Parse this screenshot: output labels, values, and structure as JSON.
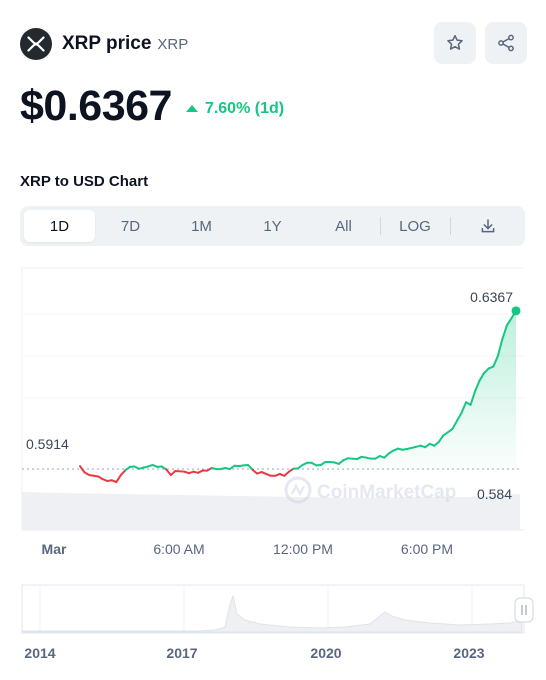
{
  "coin": {
    "name": "XRP price",
    "symbol": "XRP",
    "price": "$0.6367",
    "change": "7.60% (1d)",
    "change_color": "#16c784",
    "logo_icon": "xrp-logo-icon"
  },
  "actions": {
    "watchlist_icon": "star-icon",
    "share_icon": "share-icon"
  },
  "chart_section": {
    "title": "XRP to USD Chart",
    "ranges": [
      "1D",
      "7D",
      "1M",
      "1Y",
      "All"
    ],
    "active_range": "1D",
    "scale_label": "LOG",
    "download_icon": "download-icon"
  },
  "chart_data": {
    "type": "line",
    "x_tick_labels": [
      "Mar",
      "6:00 AM",
      "12:00 PM",
      "6:00 PM"
    ],
    "y_labels": {
      "current": "0.6367",
      "open": "0.5914",
      "low": "0.584"
    },
    "reference_value": 0.5914,
    "ylim": [
      0.575,
      0.645
    ],
    "colors": {
      "up": "#16c784",
      "down": "#ea3943",
      "reference": "#a6b0c3"
    },
    "x": [
      0,
      0.25,
      0.5,
      0.75,
      1,
      1.25,
      1.5,
      1.75,
      2,
      2.25,
      2.5,
      2.75,
      3,
      3.25,
      3.5,
      3.75,
      4,
      4.25,
      4.5,
      4.75,
      5,
      5.25,
      5.5,
      5.75,
      6,
      6.25,
      6.5,
      6.75,
      7,
      7.25,
      7.5,
      7.75,
      8,
      8.25,
      8.5,
      8.75,
      9,
      9.25,
      9.5,
      9.75,
      10,
      10.25,
      10.5,
      10.75,
      11,
      11.25,
      11.5,
      11.75,
      12,
      12.25,
      12.5,
      12.75,
      13,
      13.25,
      13.5,
      13.75,
      14,
      14.25,
      14.5,
      14.75,
      15,
      15.25,
      15.5,
      15.75,
      16,
      16.25,
      16.5,
      16.75,
      17,
      17.25,
      17.5,
      17.75,
      18,
      18.25,
      18.5,
      18.75,
      19,
      19.25,
      19.5,
      19.75,
      20,
      20.25,
      20.5,
      20.75,
      21,
      21.25,
      21.5,
      21.75,
      22,
      22.25,
      22.5,
      22.75,
      23,
      23.25,
      23.5,
      23.75,
      24
    ],
    "y": [
      0.5922,
      0.5905,
      0.5898,
      0.5896,
      0.5894,
      0.5887,
      0.5882,
      0.5884,
      0.5879,
      0.5898,
      0.5911,
      0.592,
      0.5921,
      0.5915,
      0.5918,
      0.5921,
      0.5925,
      0.592,
      0.5921,
      0.5913,
      0.5898,
      0.5909,
      0.5908,
      0.5907,
      0.5903,
      0.5907,
      0.5904,
      0.591,
      0.591,
      0.5917,
      0.5914,
      0.5914,
      0.5917,
      0.5914,
      0.5923,
      0.5922,
      0.5924,
      0.5925,
      0.5912,
      0.5902,
      0.5906,
      0.5901,
      0.5896,
      0.5896,
      0.5901,
      0.5896,
      0.5907,
      0.5915,
      0.5916,
      0.5925,
      0.5931,
      0.5931,
      0.5924,
      0.5925,
      0.5933,
      0.5933,
      0.5932,
      0.5928,
      0.5938,
      0.5943,
      0.5942,
      0.5941,
      0.5947,
      0.5945,
      0.5942,
      0.5942,
      0.5949,
      0.5945,
      0.5956,
      0.5964,
      0.5969,
      0.5966,
      0.5968,
      0.5971,
      0.5974,
      0.5977,
      0.5973,
      0.5982,
      0.5977,
      0.5987,
      0.6005,
      0.6013,
      0.6022,
      0.6044,
      0.6065,
      0.6094,
      0.6087,
      0.6124,
      0.6153,
      0.6173,
      0.6185,
      0.619,
      0.6218,
      0.6264,
      0.6301,
      0.632,
      0.634
    ],
    "volume_note": "volume bars shown as light grey band",
    "navigator": {
      "x_tick_labels": [
        "2014",
        "2017",
        "2020",
        "2023"
      ],
      "handle_icon": "drag-handle-icon"
    },
    "watermark": "CoinMarketCap"
  }
}
